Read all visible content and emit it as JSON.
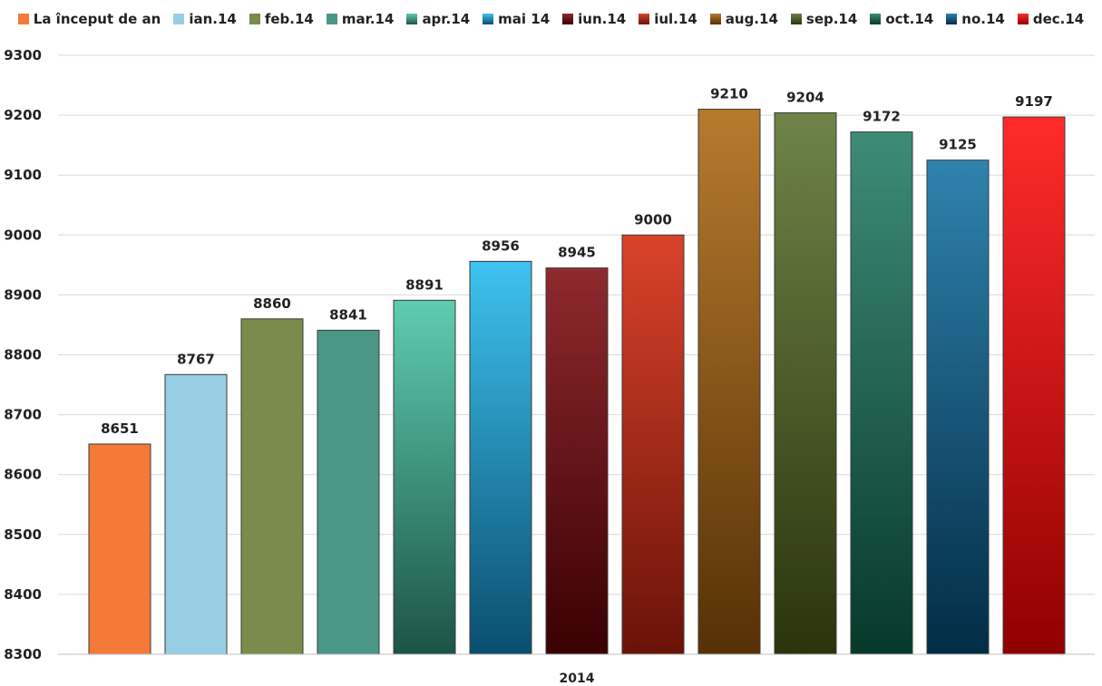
{
  "chart_data": {
    "type": "bar",
    "categories": [
      "2014"
    ],
    "series": [
      {
        "name": "La început de an",
        "values": [
          8651
        ],
        "color": "#F47A3A",
        "color_dark": "#F47A3A"
      },
      {
        "name": "ian.14",
        "values": [
          8767
        ],
        "color": "#96CFE3",
        "color_dark": "#96CFE3"
      },
      {
        "name": "feb.14",
        "values": [
          8860
        ],
        "color": "#7A8C4B",
        "color_dark": "#7A8C4B"
      },
      {
        "name": "mar.14",
        "values": [
          8841
        ],
        "color": "#4A9788",
        "color_dark": "#4A9788"
      },
      {
        "name": "apr.14",
        "values": [
          8891
        ],
        "color": "#5ECDB2",
        "color_dark": "#1C5446"
      },
      {
        "name": "mai 14",
        "values": [
          8956
        ],
        "color": "#3EC3F0",
        "color_dark": "#0A4E6E"
      },
      {
        "name": "iun.14",
        "values": [
          8945
        ],
        "color": "#8E2A2E",
        "color_dark": "#3A0002"
      },
      {
        "name": "iul.14",
        "values": [
          9000
        ],
        "color": "#D9432A",
        "color_dark": "#6A1208"
      },
      {
        "name": "aug.14",
        "values": [
          9210
        ],
        "color": "#B67B2E",
        "color_dark": "#563105"
      },
      {
        "name": "sep.14",
        "values": [
          9204
        ],
        "color": "#6E8447",
        "color_dark": "#2A340C"
      },
      {
        "name": "oct.14",
        "values": [
          9172
        ],
        "color": "#3D8C78",
        "color_dark": "#07392A"
      },
      {
        "name": "no.14",
        "values": [
          9125
        ],
        "color": "#2F83AE",
        "color_dark": "#022C45"
      },
      {
        "name": "dec.14",
        "values": [
          9197
        ],
        "color": "#FF2B2B",
        "color_dark": "#900000"
      }
    ],
    "ylim": [
      8300,
      9300
    ],
    "yticks": [
      8300,
      8400,
      8500,
      8600,
      8700,
      8800,
      8900,
      9000,
      9100,
      9200,
      9300
    ],
    "xlabel": "",
    "ylabel": "",
    "title": "",
    "grid": true,
    "legend": "top"
  }
}
